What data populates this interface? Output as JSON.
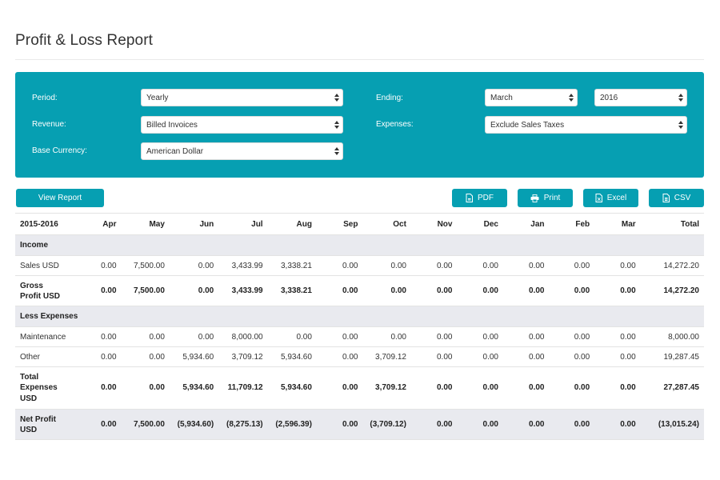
{
  "page": {
    "title": "Profit & Loss Report"
  },
  "filters": {
    "period_label": "Period:",
    "period_value": "Yearly",
    "ending_label": "Ending:",
    "ending_month": "March",
    "ending_year": "2016",
    "revenue_label": "Revenue:",
    "revenue_value": "Billed Invoices",
    "expenses_label": "Expenses:",
    "expenses_value": "Exclude Sales Taxes",
    "currency_label": "Base Currency:",
    "currency_value": "American Dollar"
  },
  "toolbar": {
    "view_report": "View Report",
    "pdf": "PDF",
    "print": "Print",
    "excel": "Excel",
    "csv": "CSV"
  },
  "colors": {
    "accent": "#069fb2",
    "section_bg": "#e9eaef"
  },
  "icons": {
    "pdf": "file-pdf-icon",
    "print": "printer-icon",
    "excel": "file-excel-icon",
    "csv": "file-csv-icon"
  },
  "table": {
    "headers": [
      "2015-2016",
      "Apr",
      "May",
      "Jun",
      "Jul",
      "Aug",
      "Sep",
      "Oct",
      "Nov",
      "Dec",
      "Jan",
      "Feb",
      "Mar",
      "Total"
    ],
    "rows": [
      {
        "type": "section",
        "cells": [
          "Income"
        ]
      },
      {
        "type": "row",
        "cells": [
          "Sales USD",
          "0.00",
          "7,500.00",
          "0.00",
          "3,433.99",
          "3,338.21",
          "0.00",
          "0.00",
          "0.00",
          "0.00",
          "0.00",
          "0.00",
          "0.00",
          "14,272.20"
        ]
      },
      {
        "type": "bold-tall2",
        "cells": [
          "Gross\nProfit USD",
          "0.00",
          "7,500.00",
          "0.00",
          "3,433.99",
          "3,338.21",
          "0.00",
          "0.00",
          "0.00",
          "0.00",
          "0.00",
          "0.00",
          "0.00",
          "14,272.20"
        ]
      },
      {
        "type": "section",
        "cells": [
          "Less Expenses"
        ]
      },
      {
        "type": "row",
        "cells": [
          "Maintenance",
          "0.00",
          "0.00",
          "0.00",
          "8,000.00",
          "0.00",
          "0.00",
          "0.00",
          "0.00",
          "0.00",
          "0.00",
          "0.00",
          "0.00",
          "8,000.00"
        ]
      },
      {
        "type": "row",
        "cells": [
          "Other",
          "0.00",
          "0.00",
          "5,934.60",
          "3,709.12",
          "5,934.60",
          "0.00",
          "3,709.12",
          "0.00",
          "0.00",
          "0.00",
          "0.00",
          "0.00",
          "19,287.45"
        ]
      },
      {
        "type": "bold-tall3",
        "cells": [
          "Total\nExpenses\nUSD",
          "0.00",
          "0.00",
          "5,934.60",
          "11,709.12",
          "5,934.60",
          "0.00",
          "3,709.12",
          "0.00",
          "0.00",
          "0.00",
          "0.00",
          "0.00",
          "27,287.45"
        ]
      },
      {
        "type": "bold-shaded-tall2",
        "cells": [
          "Net Profit\nUSD",
          "0.00",
          "7,500.00",
          "(5,934.60)",
          "(8,275.13)",
          "(2,596.39)",
          "0.00",
          "(3,709.12)",
          "0.00",
          "0.00",
          "0.00",
          "0.00",
          "0.00",
          "(13,015.24)"
        ]
      }
    ]
  }
}
